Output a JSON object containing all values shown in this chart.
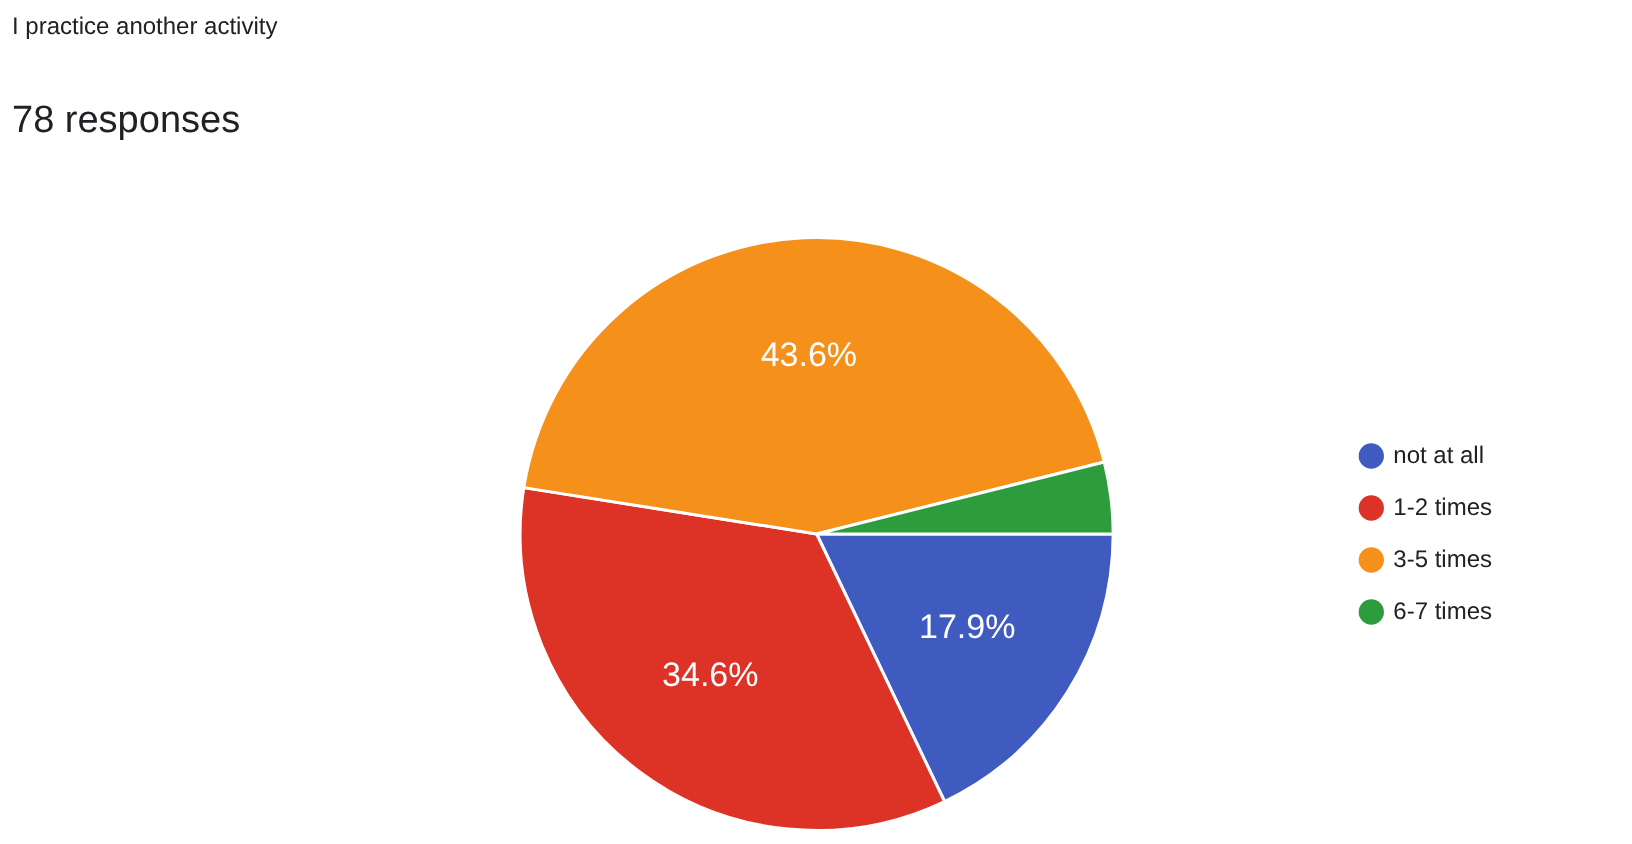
{
  "chart_data": {
    "type": "pie",
    "title": "I practice another activity",
    "subtitle": "78 responses",
    "categories": [
      "not at all",
      "1-2 times",
      "3-5 times",
      "6-7 times"
    ],
    "values": [
      17.9,
      34.6,
      43.6,
      3.9
    ],
    "colors": [
      "#3f5bbf",
      "#dc3326",
      "#f5901a",
      "#2c9c3c"
    ],
    "value_labels": [
      "17.9%",
      "34.6%",
      "43.6%",
      null
    ],
    "legend": "right"
  }
}
